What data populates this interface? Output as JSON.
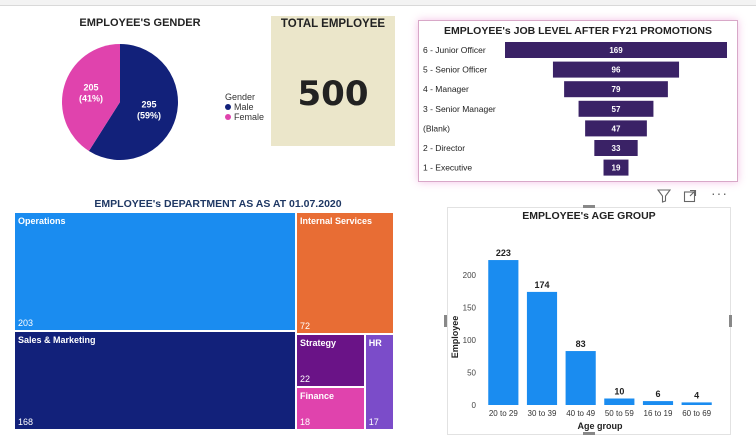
{
  "gender": {
    "title": "EMPLOYEE'S GENDER",
    "legend_title": "Gender",
    "chart_data": {
      "type": "pie",
      "labels": [
        "Male",
        "Female"
      ],
      "values": [
        295,
        205
      ],
      "value_labels": [
        "295\n(59%)",
        "205\n(41%)"
      ],
      "colors": [
        "#12217a",
        "#e043ad"
      ],
      "legend_placement": "right"
    }
  },
  "total": {
    "title": "TOTAL EMPLOYEE",
    "value": "500"
  },
  "job_level": {
    "title": "EMPLOYEE's JOB LEVEL AFTER FY21 PROMOTIONS",
    "chart_data": {
      "type": "bar",
      "orientation": "funnel",
      "categories": [
        "6 - Junior Officer",
        "5 - Senior Officer",
        "4 - Manager",
        "3 - Senior Manager",
        "(Blank)",
        "2 - Director",
        "1 - Executive"
      ],
      "values": [
        169,
        96,
        79,
        57,
        47,
        33,
        19
      ],
      "color": "#3a2266"
    }
  },
  "department": {
    "title": "EMPLOYEE's DEPARTMENT AS AS AT 01.07.2020",
    "chart_data": {
      "type": "treemap",
      "items": [
        {
          "name": "Operations",
          "value": 203,
          "color": "#1a8cf0"
        },
        {
          "name": "Sales & Marketing",
          "value": 168,
          "color": "#12217a"
        },
        {
          "name": "Internal Services",
          "value": 72,
          "color": "#e86d34"
        },
        {
          "name": "Strategy",
          "value": 22,
          "color": "#6a1387"
        },
        {
          "name": "Finance",
          "value": 18,
          "color": "#e043ad"
        },
        {
          "name": "HR",
          "value": 17,
          "color": "#7b4cc9"
        }
      ]
    }
  },
  "age": {
    "title": "EMPLOYEE's AGE GROUP",
    "chart_data": {
      "type": "bar",
      "categories": [
        "20 to 29",
        "30 to 39",
        "40 to 49",
        "50 to 59",
        "16 to 19",
        "60 to 69"
      ],
      "values": [
        223,
        174,
        83,
        10,
        6,
        4
      ],
      "xlabel": "Age group",
      "ylabel": "Employee",
      "yticks": [
        0,
        50,
        100,
        150,
        200
      ],
      "ylim": [
        0,
        240
      ],
      "color": "#1a8cf0",
      "grid": false
    }
  },
  "toolbar": {
    "filter_icon": "filter-icon",
    "focus_icon": "focus-mode-icon",
    "more_icon": "more-options-icon",
    "more_label": "···"
  }
}
